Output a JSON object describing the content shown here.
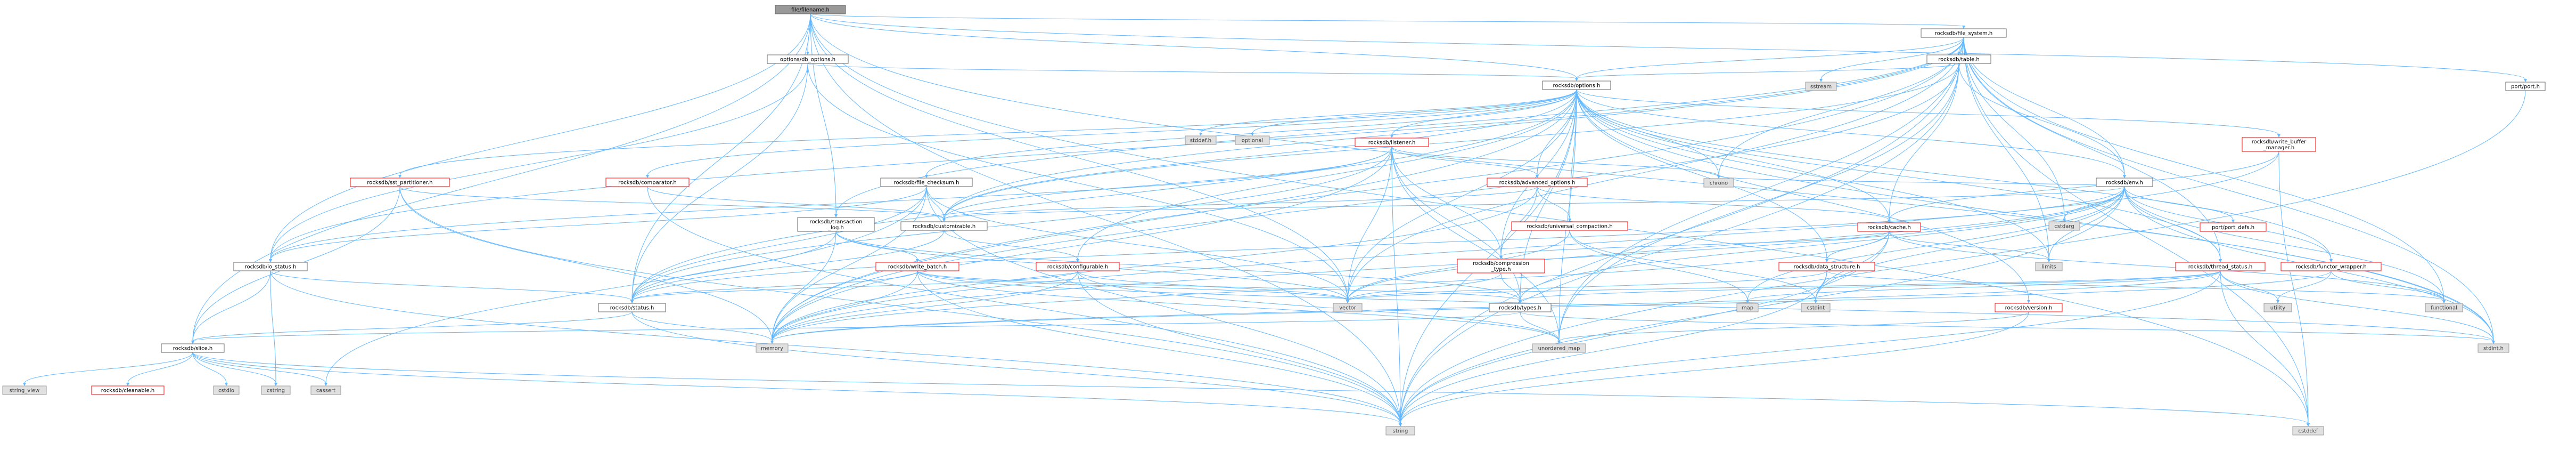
{
  "graph": {
    "root": "file/filename.h",
    "nodes": [
      {
        "id": "root",
        "label": [
          "file/filename.h"
        ],
        "kind": "root"
      },
      {
        "id": "rfs",
        "label": [
          "rocksdb/file_system.h"
        ],
        "kind": "plain"
      },
      {
        "id": "dbopt",
        "label": [
          "options/db_options.h"
        ],
        "kind": "plain"
      },
      {
        "id": "port",
        "label": [
          "port/port.h"
        ],
        "kind": "plain"
      },
      {
        "id": "sstream",
        "label": [
          "sstream"
        ],
        "kind": "sys"
      },
      {
        "id": "rtable",
        "label": [
          "rocksdb/table.h"
        ],
        "kind": "plain"
      },
      {
        "id": "ropt",
        "label": [
          "rocksdb/options.h"
        ],
        "kind": "plain"
      },
      {
        "id": "stddef",
        "label": [
          "stddef.h"
        ],
        "kind": "sys"
      },
      {
        "id": "optional",
        "label": [
          "optional"
        ],
        "kind": "sys"
      },
      {
        "id": "rlistener",
        "label": [
          "rocksdb/listener.h"
        ],
        "kind": "trunc"
      },
      {
        "id": "chrono",
        "label": [
          "chrono"
        ],
        "kind": "sys"
      },
      {
        "id": "rwbm",
        "label": [
          "rocksdb/write_buffer",
          "_manager.h"
        ],
        "kind": "trunc"
      },
      {
        "id": "portdefs",
        "label": [
          "port/port_defs.h"
        ],
        "kind": "trunc"
      },
      {
        "id": "rsstp",
        "label": [
          "rocksdb/sst_partitioner.h"
        ],
        "kind": "trunc"
      },
      {
        "id": "rcomparator",
        "label": [
          "rocksdb/comparator.h"
        ],
        "kind": "trunc"
      },
      {
        "id": "rfc",
        "label": [
          "rocksdb/file_checksum.h"
        ],
        "kind": "plain"
      },
      {
        "id": "radv",
        "label": [
          "rocksdb/advanced_options.h"
        ],
        "kind": "trunc"
      },
      {
        "id": "runiv",
        "label": [
          "rocksdb/universal_compaction.h"
        ],
        "kind": "trunc"
      },
      {
        "id": "renv",
        "label": [
          "rocksdb/env.h"
        ],
        "kind": "plain"
      },
      {
        "id": "cstdarg",
        "label": [
          "cstdarg"
        ],
        "kind": "sys"
      },
      {
        "id": "rtxlog",
        "label": [
          "rocksdb/transaction",
          "_log.h"
        ],
        "kind": "plain"
      },
      {
        "id": "rcust",
        "label": [
          "rocksdb/customizable.h"
        ],
        "kind": "plain"
      },
      {
        "id": "rcache",
        "label": [
          "rocksdb/cache.h"
        ],
        "kind": "trunc"
      },
      {
        "id": "rwb",
        "label": [
          "rocksdb/write_batch.h"
        ],
        "kind": "trunc"
      },
      {
        "id": "rconf",
        "label": [
          "rocksdb/configurable.h"
        ],
        "kind": "trunc"
      },
      {
        "id": "rcomp",
        "label": [
          "rocksdb/compression",
          "_type.h"
        ],
        "kind": "trunc"
      },
      {
        "id": "rds",
        "label": [
          "rocksdb/data_structure.h"
        ],
        "kind": "trunc"
      },
      {
        "id": "limits",
        "label": [
          "limits"
        ],
        "kind": "sys"
      },
      {
        "id": "rts",
        "label": [
          "rocksdb/thread_status.h"
        ],
        "kind": "trunc"
      },
      {
        "id": "rfw",
        "label": [
          "rocksdb/functor_wrapper.h"
        ],
        "kind": "trunc"
      },
      {
        "id": "rio",
        "label": [
          "rocksdb/io_status.h"
        ],
        "kind": "plain"
      },
      {
        "id": "rstatus",
        "label": [
          "rocksdb/status.h"
        ],
        "kind": "plain"
      },
      {
        "id": "map",
        "label": [
          "map"
        ],
        "kind": "sys"
      },
      {
        "id": "cstdint",
        "label": [
          "cstdint"
        ],
        "kind": "sys"
      },
      {
        "id": "vector",
        "label": [
          "vector"
        ],
        "kind": "sys"
      },
      {
        "id": "rtypes",
        "label": [
          "rocksdb/types.h"
        ],
        "kind": "plain"
      },
      {
        "id": "utility",
        "label": [
          "utility"
        ],
        "kind": "sys"
      },
      {
        "id": "functional",
        "label": [
          "functional"
        ],
        "kind": "sys"
      },
      {
        "id": "rversion",
        "label": [
          "rocksdb/version.h"
        ],
        "kind": "trunc"
      },
      {
        "id": "rslice",
        "label": [
          "rocksdb/slice.h"
        ],
        "kind": "plain"
      },
      {
        "id": "memory",
        "label": [
          "memory"
        ],
        "kind": "sys"
      },
      {
        "id": "umap",
        "label": [
          "unordered_map"
        ],
        "kind": "sys"
      },
      {
        "id": "stdint",
        "label": [
          "stdint.h"
        ],
        "kind": "sys"
      },
      {
        "id": "string_view",
        "label": [
          "string_view"
        ],
        "kind": "sys"
      },
      {
        "id": "rcleanable",
        "label": [
          "rocksdb/cleanable.h"
        ],
        "kind": "trunc"
      },
      {
        "id": "cstdio",
        "label": [
          "cstdio"
        ],
        "kind": "sys"
      },
      {
        "id": "cstring",
        "label": [
          "cstring"
        ],
        "kind": "sys"
      },
      {
        "id": "cassert",
        "label": [
          "cassert"
        ],
        "kind": "sys"
      },
      {
        "id": "string",
        "label": [
          "string"
        ],
        "kind": "sys"
      },
      {
        "id": "cstddef",
        "label": [
          "cstddef"
        ],
        "kind": "sys"
      }
    ],
    "edges": [
      [
        "root",
        "rfs"
      ],
      [
        "root",
        "dbopt"
      ],
      [
        "root",
        "port"
      ],
      [
        "root",
        "ropt"
      ],
      [
        "root",
        "rstatus"
      ],
      [
        "root",
        "rio"
      ],
      [
        "root",
        "rslice"
      ],
      [
        "root",
        "rtxlog"
      ],
      [
        "root",
        "string"
      ],
      [
        "root",
        "unordered_map_dummy"
      ],
      [
        "root",
        "vector"
      ],
      [
        "root",
        "stdint"
      ],
      [
        "root",
        "cstddef"
      ],
      [
        "rfs",
        "sstream"
      ],
      [
        "rfs",
        "rtable"
      ],
      [
        "rfs",
        "ropt"
      ],
      [
        "rfs",
        "renv"
      ],
      [
        "rfs",
        "rio"
      ],
      [
        "rfs",
        "rtxlog"
      ],
      [
        "rfs",
        "chrono"
      ],
      [
        "rfs",
        "cstdarg"
      ],
      [
        "rfs",
        "functional"
      ],
      [
        "rfs",
        "limits"
      ],
      [
        "rfs",
        "string"
      ],
      [
        "rfs",
        "vector"
      ],
      [
        "rfs",
        "stdint"
      ],
      [
        "rfs",
        "umap"
      ],
      [
        "rfs",
        "rts"
      ],
      [
        "rfs",
        "rcust"
      ],
      [
        "rfs",
        "cstddef"
      ],
      [
        "rfs",
        "memory"
      ],
      [
        "dbopt",
        "ropt"
      ],
      [
        "dbopt",
        "rstatus"
      ],
      [
        "dbopt",
        "vector"
      ],
      [
        "dbopt",
        "rio"
      ],
      [
        "port",
        "string"
      ],
      [
        "rtable",
        "ropt"
      ],
      [
        "rtable",
        "renv"
      ],
      [
        "rtable",
        "rcache"
      ],
      [
        "rtable",
        "rcust"
      ],
      [
        "rtable",
        "string"
      ],
      [
        "rtable",
        "umap"
      ],
      [
        "rtable",
        "memory"
      ],
      [
        "ropt",
        "stddef"
      ],
      [
        "ropt",
        "optional"
      ],
      [
        "ropt",
        "rlistener"
      ],
      [
        "ropt",
        "rwbm"
      ],
      [
        "ropt",
        "rsstp"
      ],
      [
        "ropt",
        "rcomparator"
      ],
      [
        "ropt",
        "rfc"
      ],
      [
        "ropt",
        "radv"
      ],
      [
        "ropt",
        "runiv"
      ],
      [
        "ropt",
        "renv"
      ],
      [
        "ropt",
        "rcust"
      ],
      [
        "ropt",
        "rcache"
      ],
      [
        "ropt",
        "rcomp"
      ],
      [
        "ropt",
        "rds"
      ],
      [
        "ropt",
        "rtypes"
      ],
      [
        "ropt",
        "rversion"
      ],
      [
        "ropt",
        "limits"
      ],
      [
        "ropt",
        "rstatus"
      ],
      [
        "ropt",
        "vector"
      ],
      [
        "ropt",
        "umap"
      ],
      [
        "ropt",
        "memory"
      ],
      [
        "ropt",
        "string"
      ],
      [
        "ropt",
        "stdint"
      ],
      [
        "ropt",
        "chrono"
      ],
      [
        "ropt",
        "rconf"
      ],
      [
        "ropt",
        "rfw"
      ],
      [
        "ropt",
        "rts"
      ],
      [
        "rlistener",
        "chrono"
      ],
      [
        "rlistener",
        "rcomp"
      ],
      [
        "rlistener",
        "rcust"
      ],
      [
        "rlistener",
        "rstatus"
      ],
      [
        "rlistener",
        "rtypes"
      ],
      [
        "rlistener",
        "string"
      ],
      [
        "rlistener",
        "vector"
      ],
      [
        "rlistener",
        "umap"
      ],
      [
        "rlistener",
        "memory"
      ],
      [
        "rlistener",
        "radv"
      ],
      [
        "rlistener",
        "rio"
      ],
      [
        "rwbm",
        "rcache"
      ],
      [
        "rwbm",
        "cstddef"
      ],
      [
        "rwbm",
        "memory"
      ],
      [
        "rsstp",
        "rcust"
      ],
      [
        "rsstp",
        "rslice"
      ],
      [
        "rsstp",
        "string"
      ],
      [
        "rsstp",
        "memory"
      ],
      [
        "rcomparator",
        "rcust"
      ],
      [
        "rcomparator",
        "string"
      ],
      [
        "rfc",
        "rcust"
      ],
      [
        "rfc",
        "rio"
      ],
      [
        "rfc",
        "rstatus"
      ],
      [
        "rfc",
        "vector"
      ],
      [
        "rfc",
        "string"
      ],
      [
        "rfc",
        "memory"
      ],
      [
        "rfc",
        "cassert"
      ],
      [
        "radv",
        "rcache"
      ],
      [
        "radv",
        "rcomp"
      ],
      [
        "radv",
        "rcust"
      ],
      [
        "radv",
        "runiv"
      ],
      [
        "radv",
        "memory"
      ],
      [
        "runiv",
        "cstdint"
      ],
      [
        "runiv",
        "vector"
      ],
      [
        "runiv",
        "map"
      ],
      [
        "renv",
        "cstdarg"
      ],
      [
        "renv",
        "portdefs"
      ],
      [
        "renv",
        "rfw"
      ],
      [
        "renv",
        "rts"
      ],
      [
        "renv",
        "rcust"
      ],
      [
        "renv",
        "rstatus"
      ],
      [
        "renv",
        "limits"
      ],
      [
        "renv",
        "functional"
      ],
      [
        "renv",
        "vector"
      ],
      [
        "renv",
        "string"
      ],
      [
        "renv",
        "memory"
      ],
      [
        "renv",
        "stdint"
      ],
      [
        "renv",
        "map"
      ],
      [
        "renv",
        "chrono"
      ],
      [
        "renv",
        "cstdint"
      ],
      [
        "renv",
        "rtypes"
      ],
      [
        "rtxlog",
        "rwb"
      ],
      [
        "rtxlog",
        "rstatus"
      ],
      [
        "rtxlog",
        "vector"
      ],
      [
        "rtxlog",
        "memory"
      ],
      [
        "rtxlog",
        "rtypes"
      ],
      [
        "rcust",
        "rconf"
      ],
      [
        "rcust",
        "rstatus"
      ],
      [
        "rcache",
        "rcomp"
      ],
      [
        "rcache",
        "rds"
      ],
      [
        "rcache",
        "limits"
      ],
      [
        "rcache",
        "memory"
      ],
      [
        "rcache",
        "string"
      ],
      [
        "rcache",
        "cstdint"
      ],
      [
        "rcache",
        "functional"
      ],
      [
        "rwb",
        "rstatus"
      ],
      [
        "rwb",
        "rtypes"
      ],
      [
        "rwb",
        "memory"
      ],
      [
        "rwb",
        "string"
      ],
      [
        "rwb",
        "vector"
      ],
      [
        "rwb",
        "umap"
      ],
      [
        "rwb",
        "stdint"
      ],
      [
        "rconf",
        "rstatus"
      ],
      [
        "rconf",
        "umap"
      ],
      [
        "rconf",
        "vector"
      ],
      [
        "rconf",
        "string"
      ],
      [
        "rconf",
        "memory"
      ],
      [
        "rcomp",
        "rtypes"
      ],
      [
        "rcomp",
        "vector"
      ],
      [
        "rds",
        "cstdint"
      ],
      [
        "rds",
        "vector"
      ],
      [
        "rds",
        "functional"
      ],
      [
        "rds",
        "string"
      ],
      [
        "rts",
        "rtypes"
      ],
      [
        "rts",
        "cstddef"
      ],
      [
        "rts",
        "stdint"
      ],
      [
        "rts",
        "string"
      ],
      [
        "rts",
        "map"
      ],
      [
        "rts",
        "vector"
      ],
      [
        "rts",
        "memory"
      ],
      [
        "rts",
        "utility"
      ],
      [
        "rfw",
        "functional"
      ],
      [
        "rfw",
        "memory"
      ],
      [
        "rfw",
        "utility"
      ],
      [
        "rio",
        "rslice"
      ],
      [
        "rio",
        "rstatus"
      ],
      [
        "rio",
        "string"
      ],
      [
        "rio",
        "cstring"
      ],
      [
        "rstatus",
        "rslice"
      ],
      [
        "rstatus",
        "memory"
      ],
      [
        "rstatus",
        "string"
      ],
      [
        "rtypes",
        "umap"
      ],
      [
        "rtypes",
        "stdint"
      ],
      [
        "rtypes",
        "rslice"
      ],
      [
        "rversion",
        "umap"
      ],
      [
        "rversion",
        "string"
      ],
      [
        "rslice",
        "string_view"
      ],
      [
        "rslice",
        "rcleanable"
      ],
      [
        "rslice",
        "cstdio"
      ],
      [
        "rslice",
        "cstring"
      ],
      [
        "rslice",
        "cassert"
      ],
      [
        "rslice",
        "cstddef"
      ],
      [
        "rslice",
        "string"
      ]
    ]
  },
  "colors": {
    "edge": "#63b8ff",
    "plain_border": "#666666",
    "sys_fill": "#e0e0e0",
    "sys_border": "#999999",
    "truncated_border": "#ff0000",
    "root_fill": "#999999"
  }
}
